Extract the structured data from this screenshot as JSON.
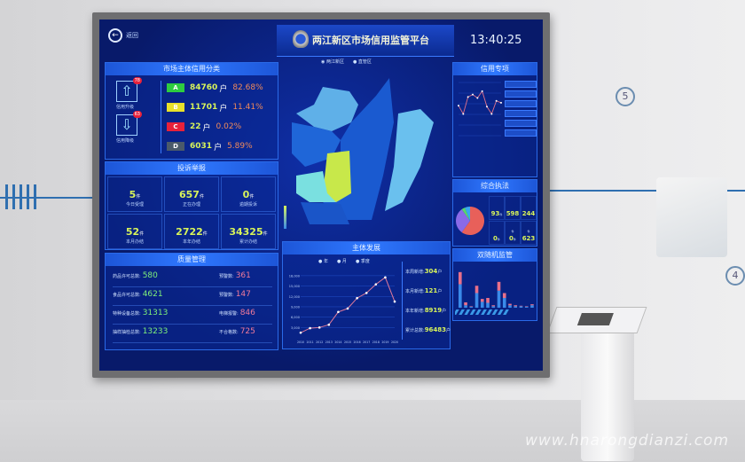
{
  "header": {
    "back_label": "返回",
    "title": "两江新区市场信用监管平台",
    "time": "13:40:25"
  },
  "map_legend": [
    "两江新区",
    "直管区"
  ],
  "credit": {
    "title": "市场主体信用分类",
    "upgrade_label": "信用升级",
    "upgrade_badge": "78",
    "downgrade_label": "信用降级",
    "downgrade_badge": "63",
    "grades": [
      {
        "grade": "A",
        "count": "84760",
        "unit": "户",
        "pct": "82.68%",
        "color": "#2ecc40"
      },
      {
        "grade": "B",
        "count": "11701",
        "unit": "户",
        "pct": "11.41%",
        "color": "#e8e12a"
      },
      {
        "grade": "C",
        "count": "22",
        "unit": "户",
        "pct": "0.02%",
        "color": "#e8213a"
      },
      {
        "grade": "D",
        "count": "6031",
        "unit": "户",
        "pct": "5.89%",
        "color": "#4a5a6a"
      }
    ]
  },
  "complaints": {
    "title": "投诉举报",
    "unit": "件",
    "items": [
      {
        "value": "5",
        "label": "今日受理"
      },
      {
        "value": "657",
        "label": "正在办理"
      },
      {
        "value": "0",
        "label": "逾期投诉"
      },
      {
        "value": "52",
        "label": "本月办结"
      },
      {
        "value": "2722",
        "label": "本年办结"
      },
      {
        "value": "34325",
        "label": "累计办结"
      }
    ]
  },
  "quality": {
    "title": "质量管理",
    "left": [
      {
        "label": "药品许可总数:",
        "value": "580"
      },
      {
        "label": "食品许可总数:",
        "value": "4621"
      },
      {
        "label": "特种设备总数:",
        "value": "31313"
      },
      {
        "label": "抽样抽检总数:",
        "value": "13233"
      }
    ],
    "right": [
      {
        "label": "预警数:",
        "value": "361"
      },
      {
        "label": "预警数:",
        "value": "147"
      },
      {
        "label": "电梯报警:",
        "value": "846"
      },
      {
        "label": "不合格数:",
        "value": "725"
      }
    ]
  },
  "development": {
    "title": "主体发展",
    "radios": [
      "年",
      "月",
      "季度"
    ],
    "stats": [
      {
        "label": "本周新增:",
        "value": "304",
        "unit": "户"
      },
      {
        "label": "本月新增:",
        "value": "121",
        "unit": "户"
      },
      {
        "label": "本年新增:",
        "value": "8919",
        "unit": "户"
      },
      {
        "label": "累计总数:",
        "value": "96483",
        "unit": "户"
      }
    ]
  },
  "credit_special": {
    "title": "信用专项"
  },
  "enforcement": {
    "title": "综合执法",
    "unit": "件",
    "values": [
      "93",
      "598",
      "244",
      "0",
      "0",
      "623"
    ]
  },
  "supervision": {
    "title": "双随机监管"
  },
  "watermark": "www.hnarongdianzi.com",
  "chart_data": [
    {
      "type": "line",
      "title": "主体发展",
      "x": [
        "2010",
        "2011",
        "2012",
        "2013",
        "2014",
        "2015",
        "2016",
        "2017",
        "2018",
        "2019",
        "2020"
      ],
      "values": [
        1500,
        2800,
        3000,
        3800,
        7500,
        8500,
        11500,
        13000,
        15500,
        17500,
        10500
      ],
      "yticks": [
        "3,000",
        "6,000",
        "9,000",
        "12,000",
        "15,000",
        "18,000"
      ],
      "ylim": [
        0,
        19000
      ],
      "color": "#e07a9a"
    },
    {
      "type": "line",
      "title": "信用专项",
      "values": [
        62,
        45,
        80,
        85,
        78,
        92,
        60,
        45,
        72,
        68
      ],
      "ylim": [
        0,
        110
      ],
      "color": "#e0708a"
    },
    {
      "type": "pie",
      "title": "综合执法",
      "values": [
        60,
        30,
        4,
        6
      ],
      "colors": [
        "#e8605a",
        "#8a6ae8",
        "#5ad86a",
        "#3aa8f0"
      ]
    },
    {
      "type": "bar",
      "title": "双随机监管",
      "series": [
        {
          "values": [
            48,
            5,
            2,
            30,
            12,
            10,
            3,
            35,
            20,
            5,
            3,
            3,
            2,
            5
          ],
          "color": "#3a8ae8"
        },
        {
          "values": [
            25,
            6,
            1,
            15,
            6,
            10,
            2,
            18,
            10,
            3,
            2,
            1,
            1,
            2
          ],
          "color": "#e8708a"
        }
      ],
      "ylim": [
        0,
        80
      ]
    }
  ]
}
